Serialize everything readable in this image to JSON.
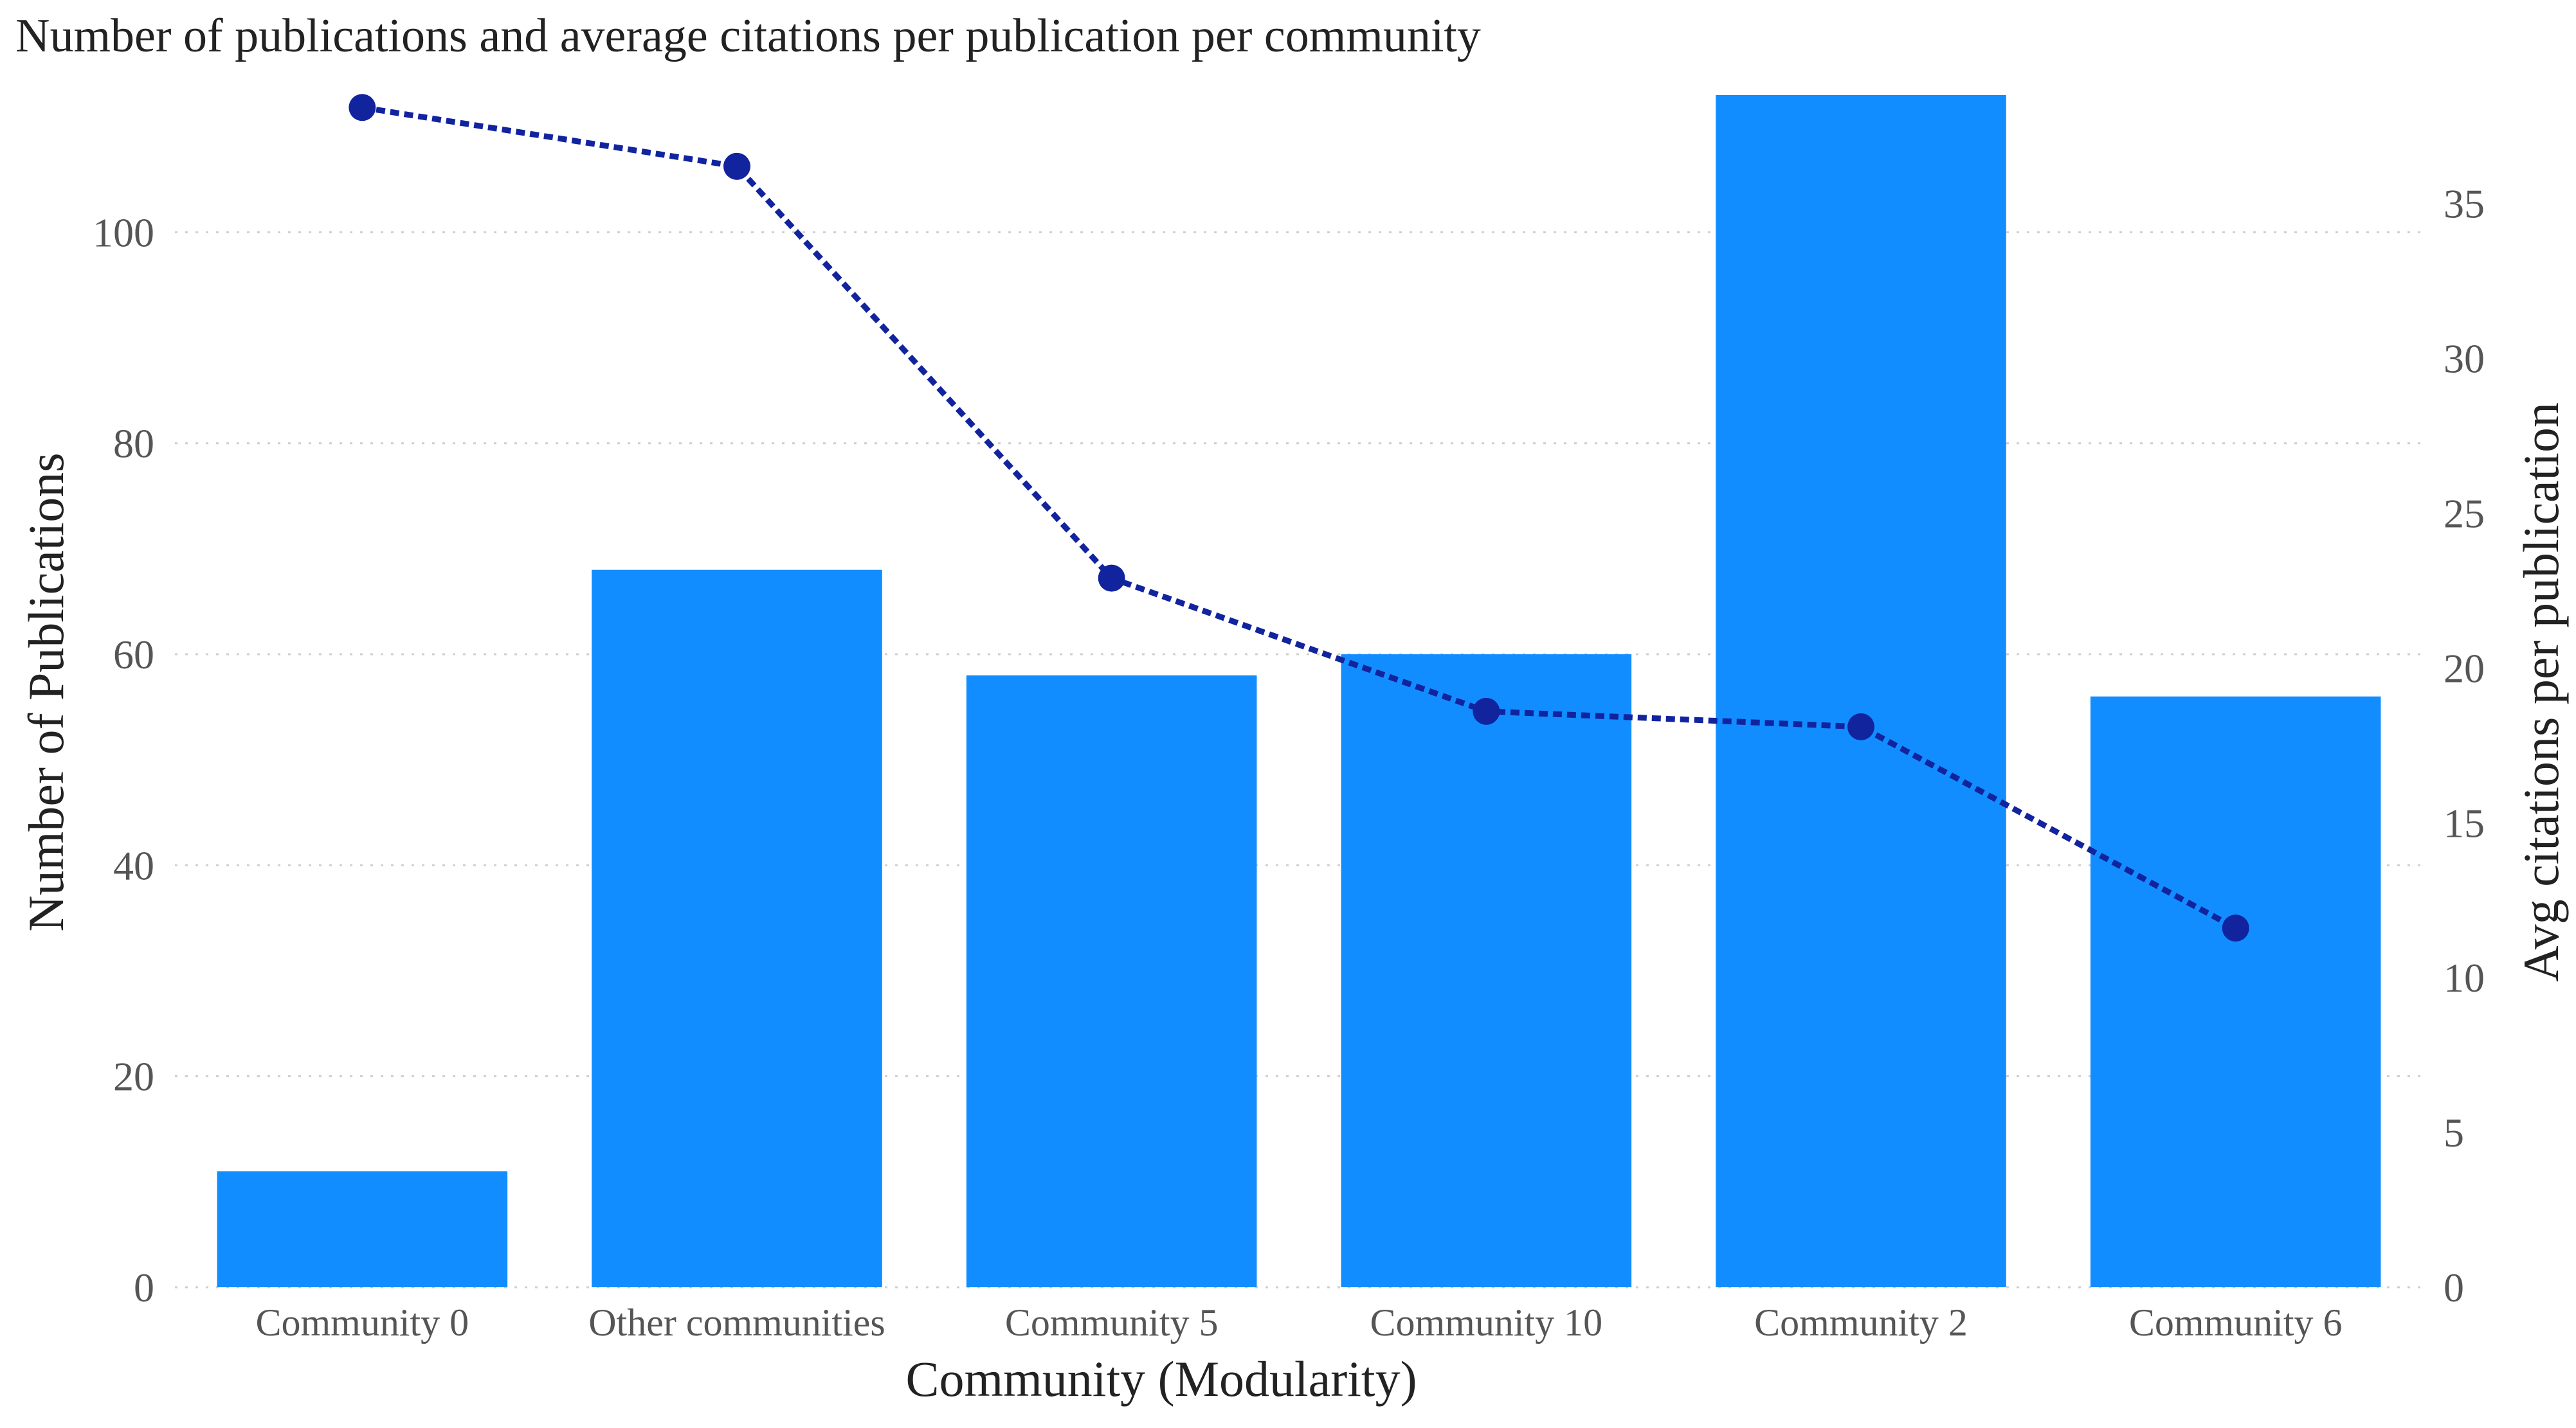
{
  "chart_data": {
    "type": "bar+line",
    "title": "Number of publications and average citations per publication per community",
    "xlabel": "Community (Modularity)",
    "ylabel": "Number of Publications",
    "y2label": "Avg citations per publication",
    "categories": [
      "Community 0",
      "Other communities",
      "Community 5",
      "Community 10",
      "Community 2",
      "Community 6"
    ],
    "series": [
      {
        "name": "Number of Publications",
        "kind": "bar",
        "axis": "left",
        "color": "#118DFF",
        "values": [
          11,
          68,
          58,
          60,
          113,
          56
        ]
      },
      {
        "name": "Avg citations per publication",
        "kind": "line",
        "axis": "right",
        "color": "#12239E",
        "values": [
          38.1,
          36.2,
          22.9,
          18.6,
          18.1,
          11.6
        ]
      }
    ],
    "ylim": [
      0,
      113
    ],
    "y2lim": [
      0,
      38.5
    ],
    "yticks": [
      0,
      20,
      40,
      60,
      80,
      100
    ],
    "y2ticks": [
      0,
      5,
      10,
      15,
      20,
      25,
      30,
      35
    ],
    "grid": true,
    "legend": "none"
  }
}
